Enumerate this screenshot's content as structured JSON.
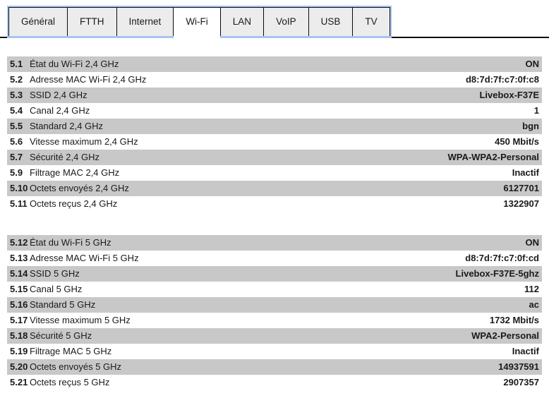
{
  "colors": {
    "tab_border_blue": "#a9c3f0",
    "tab_gray": "#ececec",
    "row_gray": "#c8c8c8",
    "line_black": "#0a0a0a"
  },
  "tabs": [
    {
      "label": "Général",
      "active": false
    },
    {
      "label": "FTTH",
      "active": false
    },
    {
      "label": "Internet",
      "active": false
    },
    {
      "label": "Wi-Fi",
      "active": true
    },
    {
      "label": "LAN",
      "active": false
    },
    {
      "label": "VoIP",
      "active": false
    },
    {
      "label": "USB",
      "active": false
    },
    {
      "label": "TV",
      "active": false
    }
  ],
  "sections": [
    {
      "name": "wifi-2-4ghz",
      "rows": [
        {
          "num": "5.1",
          "label": "État du Wi-Fi 2,4 GHz",
          "value": "ON"
        },
        {
          "num": "5.2",
          "label": "Adresse MAC Wi-Fi 2,4 GHz",
          "value": "d8:7d:7f:c7:0f:c8"
        },
        {
          "num": "5.3",
          "label": "SSID 2,4 GHz",
          "value": "Livebox-F37E"
        },
        {
          "num": "5.4",
          "label": "Canal 2,4 GHz",
          "value": "1"
        },
        {
          "num": "5.5",
          "label": "Standard 2,4 GHz",
          "value": "bgn"
        },
        {
          "num": "5.6",
          "label": "Vitesse maximum 2,4 GHz",
          "value": "450 Mbit/s"
        },
        {
          "num": "5.7",
          "label": "Sécurité 2,4 GHz",
          "value": "WPA-WPA2-Personal"
        },
        {
          "num": "5.9",
          "label": "Filtrage MAC 2,4 GHz",
          "value": "Inactif"
        },
        {
          "num": "5.10",
          "label": "Octets envoyés 2,4 GHz",
          "value": "6127701"
        },
        {
          "num": "5.11",
          "label": "Octets reçus 2,4 GHz",
          "value": "1322907"
        }
      ]
    },
    {
      "name": "wifi-5ghz",
      "rows": [
        {
          "num": "5.12",
          "label": "État du Wi-Fi 5 GHz",
          "value": "ON"
        },
        {
          "num": "5.13",
          "label": "Adresse MAC Wi-Fi 5 GHz",
          "value": "d8:7d:7f:c7:0f:cd"
        },
        {
          "num": "5.14",
          "label": "SSID 5 GHz",
          "value": "Livebox-F37E-5ghz"
        },
        {
          "num": "5.15",
          "label": "Canal 5 GHz",
          "value": "112"
        },
        {
          "num": "5.16",
          "label": "Standard 5 GHz",
          "value": "ac"
        },
        {
          "num": "5.17",
          "label": "Vitesse maximum 5 GHz",
          "value": "1732 Mbit/s"
        },
        {
          "num": "5.18",
          "label": "Sécurité 5 GHz",
          "value": "WPA2-Personal"
        },
        {
          "num": "5.19",
          "label": "Filtrage MAC 5 GHz",
          "value": "Inactif"
        },
        {
          "num": "5.20",
          "label": "Octets envoyés 5 GHz",
          "value": "14937591"
        },
        {
          "num": "5.21",
          "label": "Octets reçus 5 GHz",
          "value": "2907357"
        }
      ]
    }
  ]
}
